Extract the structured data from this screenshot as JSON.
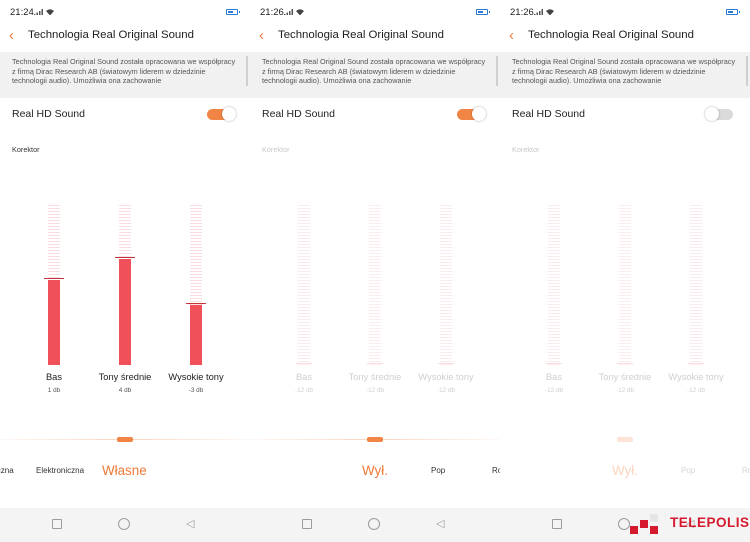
{
  "screens": [
    {
      "status_time": "21:24",
      "title": "Technologia Real Original Sound",
      "description": "Technologia Real Original Sound została opracowana we współpracy z firmą Dirac Research AB (światowym liderem w dziedzinie technologii audio). Umożliwia ona zachowanie",
      "hd_label": "Real HD Sound",
      "hd_enabled": true,
      "korektor_label": "Korektor",
      "bands": [
        {
          "label": "Bas",
          "value": "1 db",
          "level": 0.55
        },
        {
          "label": "Tony średnie",
          "value": "4 db",
          "level": 0.67
        },
        {
          "label": "Wysokie tony",
          "value": "-3 db",
          "level": 0.38
        }
      ],
      "presets": {
        "left": "iczna",
        "mid": "Elektroniczna",
        "active": "Własne"
      }
    },
    {
      "status_time": "21:26",
      "title": "Technologia Real Original Sound",
      "description": "Technologia Real Original Sound została opracowana we współpracy z firmą Dirac Research AB (światowym liderem w dziedzinie technologii audio). Umożliwia ona zachowanie",
      "hd_label": "Real HD Sound",
      "hd_enabled": true,
      "korektor_label": "Korektor",
      "bands": [
        {
          "label": "Bas",
          "value": "-12 db",
          "level": 0
        },
        {
          "label": "Tony średnie",
          "value": "-12 db",
          "level": 0
        },
        {
          "label": "Wysokie tony",
          "value": "-12 db",
          "level": 0
        }
      ],
      "presets": {
        "active": "Wył.",
        "mid": "Pop",
        "right": "Ro"
      }
    },
    {
      "status_time": "21:26",
      "title": "Technologia Real Original Sound",
      "description": "Technologia Real Original Sound została opracowana we współpracy z firmą Dirac Research AB (światowym liderem w dziedzinie technologii audio). Umożliwia ona zachowanie",
      "hd_label": "Real HD Sound",
      "hd_enabled": false,
      "korektor_label": "Korektor",
      "bands": [
        {
          "label": "Bas",
          "value": "-12 db",
          "level": 0
        },
        {
          "label": "Tony średnie",
          "value": "-12 db",
          "level": 0
        },
        {
          "label": "Wysokie tony",
          "value": "-12 db",
          "level": 0
        }
      ],
      "presets": {
        "active": "Wył.",
        "mid": "Pop",
        "right": "Ro"
      }
    }
  ],
  "icons": {
    "back": "chevron-left-icon",
    "wifi": "wifi-icon",
    "signal": "signal-icon",
    "battery": "battery-icon"
  },
  "colors": {
    "accent": "#ee7a38",
    "eq_fill": "#f0505a",
    "logo": "#d7192e"
  },
  "watermark": {
    "text": "TELEPOLIS"
  }
}
